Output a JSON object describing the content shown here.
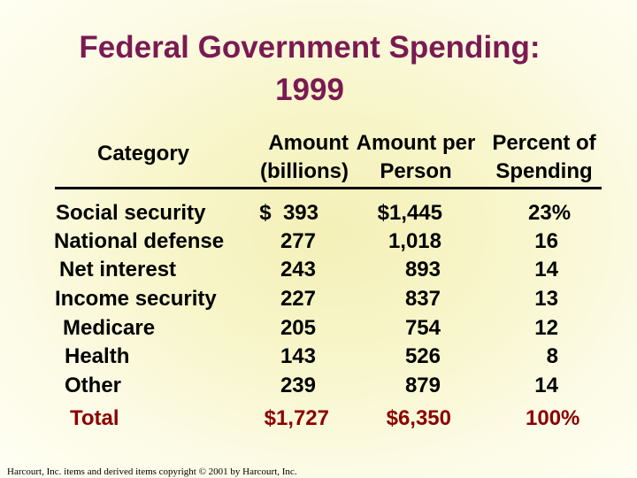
{
  "title": {
    "line1": "Federal Government Spending:",
    "line2": "1999"
  },
  "headers": {
    "category": "Category",
    "amount": {
      "line1": "Amount",
      "line2": "(billions)"
    },
    "per_person": {
      "line1": "Amount per",
      "line2": "Person"
    },
    "percent": {
      "line1": "Percent of",
      "line2": "Spending"
    }
  },
  "rows": [
    {
      "category": "Social security",
      "amount": "$  393",
      "per_person": "$1,445",
      "percent": "23%"
    },
    {
      "category": "National defense",
      "amount": "277",
      "per_person": "1,018",
      "percent": "16"
    },
    {
      "category": "Net interest",
      "amount": "243",
      "per_person": "893",
      "percent": "14"
    },
    {
      "category": "Income security",
      "amount": "227",
      "per_person": "837",
      "percent": "13"
    },
    {
      "category": "Medicare",
      "amount": "205",
      "per_person": "754",
      "percent": "12"
    },
    {
      "category": "Health",
      "amount": "143",
      "per_person": "526",
      "percent": "8"
    },
    {
      "category": "Other",
      "amount": "239",
      "per_person": "879",
      "percent": "14"
    }
  ],
  "total": {
    "category": "Total",
    "amount": "$1,727",
    "per_person": "$6,350",
    "percent": "100%"
  },
  "footer": "Harcourt, Inc. items and derived items copyright © 2001 by Harcourt, Inc.",
  "colors": {
    "title": "#7a1a52",
    "total": "#8b0000",
    "background": "#fffff0"
  }
}
